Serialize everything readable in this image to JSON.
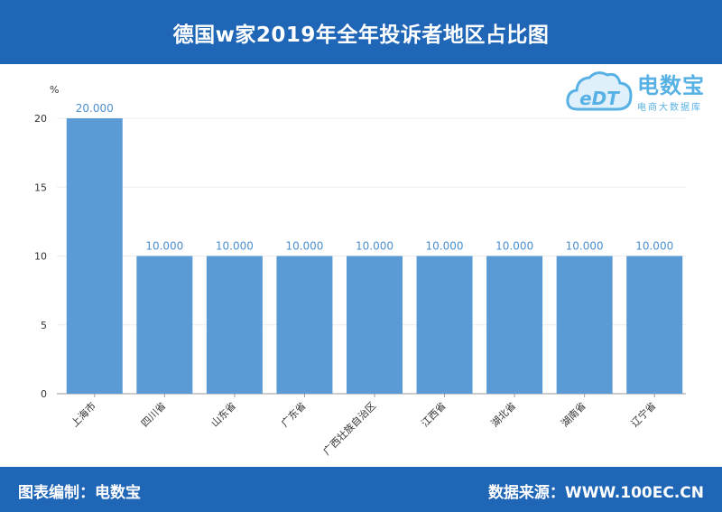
{
  "header": {
    "title": "德国w家2019年全年投诉者地区占比图"
  },
  "footer": {
    "left": "图表编制：电数宝",
    "right": "数据来源：WWW.100EC.CN"
  },
  "logo": {
    "mark": "eDT",
    "name": "电数宝",
    "tagline": "电商大数据库",
    "icon": "cloud-icon"
  },
  "colors": {
    "header_bg": "#1f66b7",
    "bar": "#5b9bd5",
    "label": "#4d8fcf",
    "logo": "#58b1e4"
  },
  "chart_data": {
    "type": "bar",
    "unit_label": "%",
    "categories": [
      "上海市",
      "四川省",
      "山东省",
      "广东省",
      "广西壮族自治区",
      "江西省",
      "湖北省",
      "湖南省",
      "辽宁省"
    ],
    "values": [
      20,
      10,
      10,
      10,
      10,
      10,
      10,
      10,
      10
    ],
    "value_labels": [
      "20.000",
      "10.000",
      "10.000",
      "10.000",
      "10.000",
      "10.000",
      "10.000",
      "10.000",
      "10.000"
    ],
    "yticks": [
      0,
      5,
      10,
      15,
      20
    ],
    "ylim": [
      0,
      20
    ],
    "grid": true
  }
}
